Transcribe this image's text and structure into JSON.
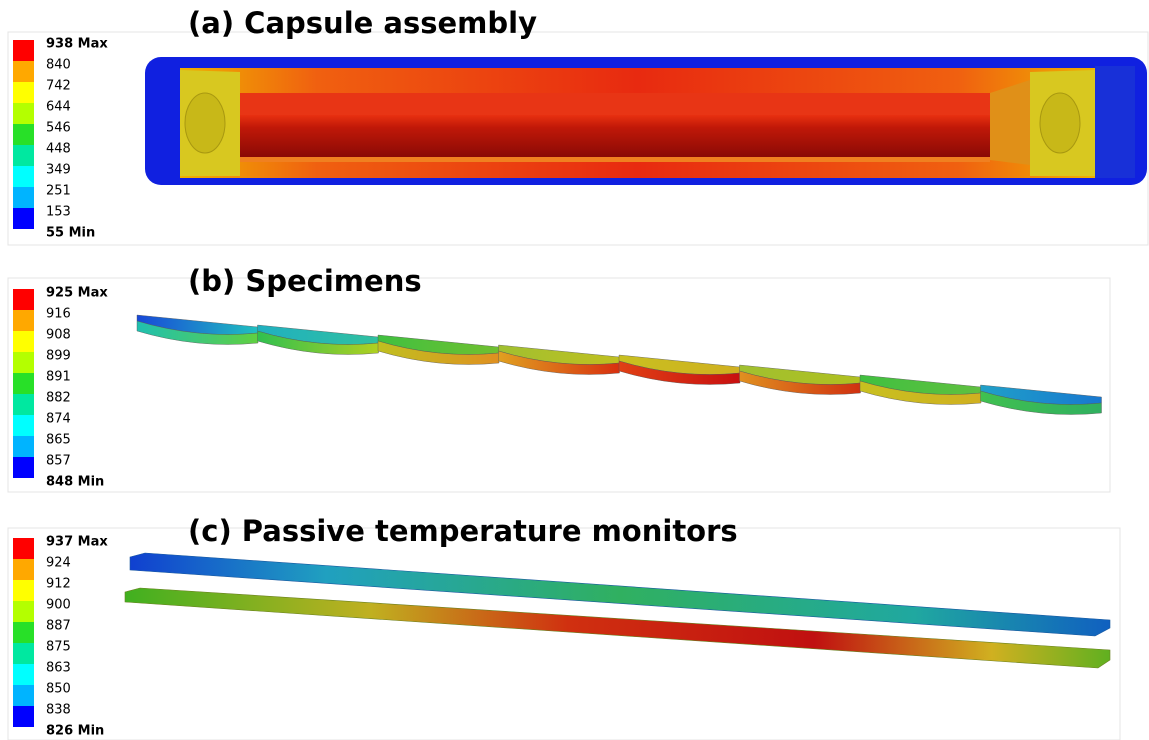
{
  "panels": [
    {
      "title": "(a) Capsule assembly",
      "legend": [
        "938 Max",
        "840",
        "742",
        "644",
        "546",
        "448",
        "349",
        "251",
        "153",
        "55 Min"
      ]
    },
    {
      "title": "(b) Specimens",
      "legend": [
        "925 Max",
        "916",
        "908",
        "899",
        "891",
        "882",
        "874",
        "865",
        "857",
        "848 Min"
      ]
    },
    {
      "title": "(c) Passive temperature monitors",
      "legend": [
        "937 Max",
        "924",
        "912",
        "900",
        "887",
        "875",
        "863",
        "850",
        "838",
        "826 Min"
      ]
    }
  ]
}
